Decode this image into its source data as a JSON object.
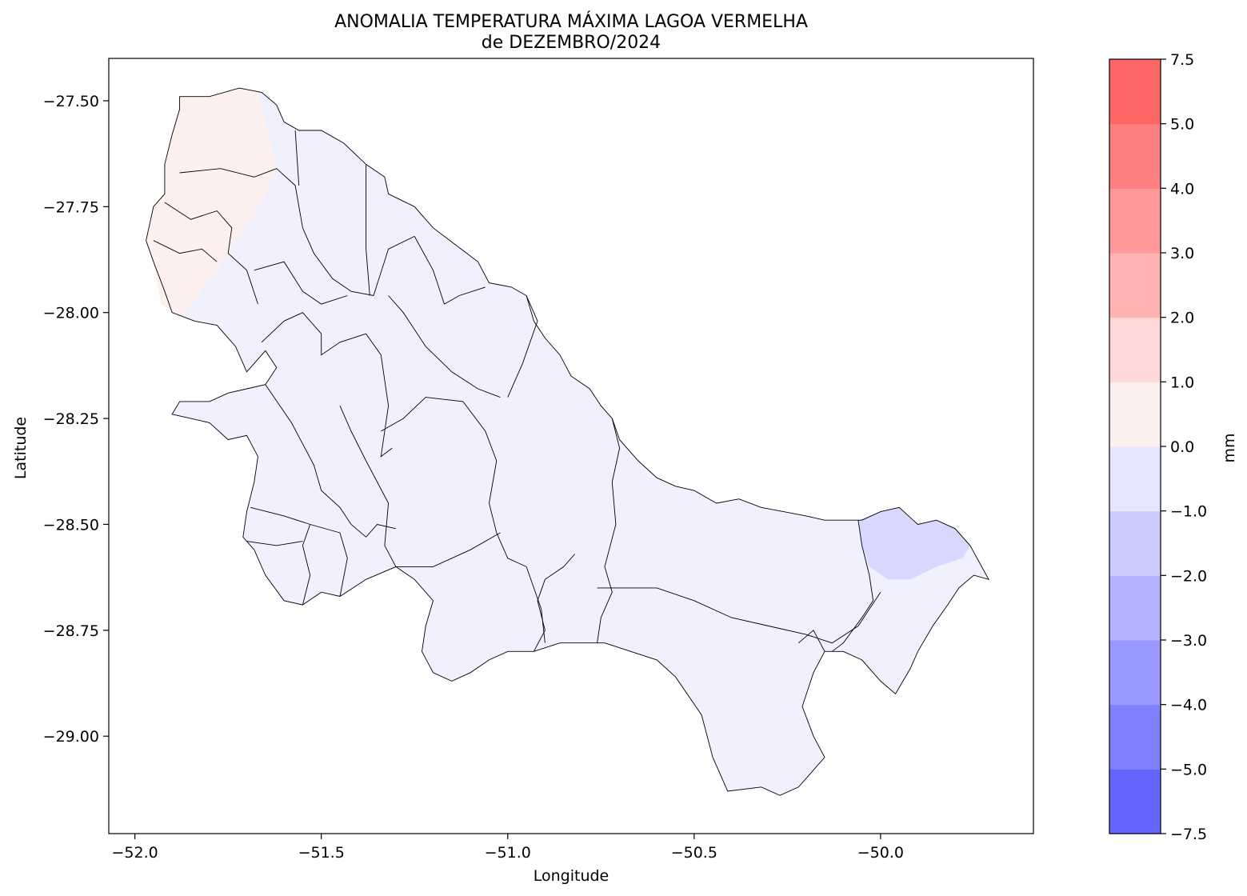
{
  "title_line1": "ANOMALIA TEMPERATURA MÁXIMA LAGOA VERMELHA",
  "title_line2": "de DEZEMBRO/2024",
  "chart_data": {
    "type": "heatmap",
    "subtype": "choropleth-map",
    "xlabel": "Longitude",
    "ylabel": "Latitude",
    "xlim": [
      -52.07,
      -49.59
    ],
    "ylim": [
      -29.23,
      -27.4
    ],
    "xticks": [
      -52.0,
      -51.5,
      -51.0,
      -50.5,
      -50.0
    ],
    "xtick_labels": [
      "−52.0",
      "−51.5",
      "−51.0",
      "−50.5",
      "−50.0"
    ],
    "yticks": [
      -27.5,
      -27.75,
      -28.0,
      -28.25,
      -28.5,
      -28.75,
      -29.0
    ],
    "ytick_labels": [
      "−27.50",
      "−27.75",
      "−28.00",
      "−28.25",
      "−28.50",
      "−28.75",
      "−29.00"
    ],
    "grid": false,
    "colorbar": {
      "label": "mm",
      "levels": [
        -7.5,
        -5.0,
        -4.0,
        -3.0,
        -2.0,
        -1.0,
        0.0,
        1.0,
        2.0,
        3.0,
        4.0,
        5.0,
        7.5
      ],
      "tick_labels": [
        "−7.5",
        "−5.0",
        "−4.0",
        "−3.0",
        "−2.0",
        "−1.0",
        "0.0",
        "1.0",
        "2.0",
        "3.0",
        "4.0",
        "5.0",
        "7.5"
      ],
      "colors": [
        "#6666ff",
        "#8080ff",
        "#9999ff",
        "#b3b3ff",
        "#ccccff",
        "#e6e6ff",
        "#fff0f0",
        "#ffd9d9",
        "#ffb3b3",
        "#ff9999",
        "#ff8080",
        "#ff6666"
      ]
    },
    "region_fills": {
      "northwest_positive": "#fff0f0",
      "main_negative": "#f0f0ff",
      "east_patch": "#d8d8ff"
    },
    "region_outline": [
      [
        -51.88,
        -27.49
      ],
      [
        -51.8,
        -27.49
      ],
      [
        -51.72,
        -27.47
      ],
      [
        -51.66,
        -27.48
      ],
      [
        -51.62,
        -27.51
      ],
      [
        -51.6,
        -27.55
      ],
      [
        -51.56,
        -27.57
      ],
      [
        -51.5,
        -27.57
      ],
      [
        -51.44,
        -27.6
      ],
      [
        -51.38,
        -27.65
      ],
      [
        -51.33,
        -27.68
      ],
      [
        -51.32,
        -27.72
      ],
      [
        -51.25,
        -27.75
      ],
      [
        -51.2,
        -27.8
      ],
      [
        -51.14,
        -27.84
      ],
      [
        -51.08,
        -27.88
      ],
      [
        -51.05,
        -27.93
      ],
      [
        -50.99,
        -27.94
      ],
      [
        -50.95,
        -27.96
      ],
      [
        -50.93,
        -28.02
      ],
      [
        -50.9,
        -28.06
      ],
      [
        -50.86,
        -28.1
      ],
      [
        -50.83,
        -28.15
      ],
      [
        -50.78,
        -28.18
      ],
      [
        -50.75,
        -28.22
      ],
      [
        -50.72,
        -28.25
      ],
      [
        -50.7,
        -28.3
      ],
      [
        -50.65,
        -28.35
      ],
      [
        -50.6,
        -28.39
      ],
      [
        -50.55,
        -28.41
      ],
      [
        -50.5,
        -28.42
      ],
      [
        -50.44,
        -28.45
      ],
      [
        -50.38,
        -28.44
      ],
      [
        -50.32,
        -28.46
      ],
      [
        -50.26,
        -28.47
      ],
      [
        -50.2,
        -28.48
      ],
      [
        -50.15,
        -28.49
      ],
      [
        -50.05,
        -28.49
      ],
      [
        -50.0,
        -28.47
      ],
      [
        -49.95,
        -28.46
      ],
      [
        -49.9,
        -28.5
      ],
      [
        -49.85,
        -28.49
      ],
      [
        -49.8,
        -28.51
      ],
      [
        -49.76,
        -28.55
      ],
      [
        -49.71,
        -28.63
      ],
      [
        -49.75,
        -28.62
      ],
      [
        -49.79,
        -28.65
      ],
      [
        -49.82,
        -28.69
      ],
      [
        -49.86,
        -28.74
      ],
      [
        -49.9,
        -28.8
      ],
      [
        -49.92,
        -28.84
      ],
      [
        -49.96,
        -28.9
      ],
      [
        -50.0,
        -28.87
      ],
      [
        -50.05,
        -28.82
      ],
      [
        -50.1,
        -28.8
      ],
      [
        -50.15,
        -28.8
      ],
      [
        -50.18,
        -28.85
      ],
      [
        -50.21,
        -28.93
      ],
      [
        -50.18,
        -29.0
      ],
      [
        -50.15,
        -29.05
      ],
      [
        -50.19,
        -29.09
      ],
      [
        -50.22,
        -29.12
      ],
      [
        -50.27,
        -29.14
      ],
      [
        -50.32,
        -29.12
      ],
      [
        -50.41,
        -29.13
      ],
      [
        -50.45,
        -29.05
      ],
      [
        -50.48,
        -28.95
      ],
      [
        -50.55,
        -28.86
      ],
      [
        -50.6,
        -28.82
      ],
      [
        -50.67,
        -28.8
      ],
      [
        -50.74,
        -28.78
      ],
      [
        -50.8,
        -28.78
      ],
      [
        -50.86,
        -28.78
      ],
      [
        -50.93,
        -28.8
      ],
      [
        -51.0,
        -28.8
      ],
      [
        -51.05,
        -28.82
      ],
      [
        -51.1,
        -28.85
      ],
      [
        -51.15,
        -28.87
      ],
      [
        -51.2,
        -28.85
      ],
      [
        -51.23,
        -28.8
      ],
      [
        -51.22,
        -28.74
      ],
      [
        -51.2,
        -28.68
      ],
      [
        -51.25,
        -28.63
      ],
      [
        -51.3,
        -28.6
      ],
      [
        -51.38,
        -28.63
      ],
      [
        -51.45,
        -28.67
      ],
      [
        -51.5,
        -28.66
      ],
      [
        -51.55,
        -28.69
      ],
      [
        -51.6,
        -28.68
      ],
      [
        -51.65,
        -28.62
      ],
      [
        -51.68,
        -28.56
      ],
      [
        -51.71,
        -28.53
      ],
      [
        -51.7,
        -28.47
      ],
      [
        -51.68,
        -28.4
      ],
      [
        -51.67,
        -28.34
      ],
      [
        -51.7,
        -28.29
      ],
      [
        -51.75,
        -28.3
      ],
      [
        -51.8,
        -28.26
      ],
      [
        -51.85,
        -28.25
      ],
      [
        -51.9,
        -28.24
      ],
      [
        -51.88,
        -28.21
      ],
      [
        -51.8,
        -28.21
      ],
      [
        -51.75,
        -28.19
      ],
      [
        -51.7,
        -28.18
      ],
      [
        -51.65,
        -28.17
      ],
      [
        -51.62,
        -28.13
      ],
      [
        -51.65,
        -28.09
      ],
      [
        -51.7,
        -28.14
      ],
      [
        -51.73,
        -28.08
      ],
      [
        -51.78,
        -28.03
      ],
      [
        -51.84,
        -28.02
      ],
      [
        -51.9,
        -28.0
      ],
      [
        -51.92,
        -27.95
      ],
      [
        -51.95,
        -27.88
      ],
      [
        -51.97,
        -27.83
      ],
      [
        -51.95,
        -27.75
      ],
      [
        -51.92,
        -27.72
      ],
      [
        -51.92,
        -27.65
      ],
      [
        -51.9,
        -27.58
      ],
      [
        -51.88,
        -27.52
      ]
    ],
    "northwest_patch": [
      [
        -51.88,
        -27.49
      ],
      [
        -51.8,
        -27.49
      ],
      [
        -51.72,
        -27.47
      ],
      [
        -51.67,
        -27.48
      ],
      [
        -51.64,
        -27.58
      ],
      [
        -51.62,
        -27.66
      ],
      [
        -51.66,
        -27.74
      ],
      [
        -51.72,
        -27.82
      ],
      [
        -51.78,
        -27.9
      ],
      [
        -51.84,
        -27.97
      ],
      [
        -51.88,
        -28.01
      ],
      [
        -51.93,
        -27.98
      ],
      [
        -51.95,
        -27.88
      ],
      [
        -51.97,
        -27.83
      ],
      [
        -51.95,
        -27.75
      ],
      [
        -51.92,
        -27.72
      ],
      [
        -51.92,
        -27.65
      ],
      [
        -51.9,
        -27.58
      ],
      [
        -51.88,
        -27.52
      ]
    ],
    "east_patch": [
      [
        -50.06,
        -28.49
      ],
      [
        -50.0,
        -28.47
      ],
      [
        -49.95,
        -28.46
      ],
      [
        -49.9,
        -28.5
      ],
      [
        -49.85,
        -28.49
      ],
      [
        -49.8,
        -28.51
      ],
      [
        -49.76,
        -28.55
      ],
      [
        -49.78,
        -28.58
      ],
      [
        -49.85,
        -28.6
      ],
      [
        -49.92,
        -28.63
      ],
      [
        -49.98,
        -28.63
      ],
      [
        -50.03,
        -28.6
      ],
      [
        -50.05,
        -28.55
      ]
    ],
    "internal_boundaries": [
      [
        [
          -51.88,
          -27.67
        ],
        [
          -51.77,
          -27.66
        ],
        [
          -51.68,
          -27.68
        ],
        [
          -51.62,
          -27.66
        ]
      ],
      [
        [
          -51.92,
          -27.74
        ],
        [
          -51.85,
          -27.78
        ],
        [
          -51.78,
          -27.76
        ],
        [
          -51.74,
          -27.8
        ],
        [
          -51.75,
          -27.86
        ],
        [
          -51.7,
          -27.9
        ],
        [
          -51.67,
          -27.98
        ]
      ],
      [
        [
          -51.95,
          -27.83
        ],
        [
          -51.88,
          -27.86
        ],
        [
          -51.82,
          -27.85
        ],
        [
          -51.78,
          -27.88
        ]
      ],
      [
        [
          -51.62,
          -27.66
        ],
        [
          -51.57,
          -27.7
        ],
        [
          -51.55,
          -27.8
        ],
        [
          -51.52,
          -27.86
        ],
        [
          -51.47,
          -27.92
        ],
        [
          -51.42,
          -27.95
        ],
        [
          -51.36,
          -27.96
        ],
        [
          -51.32,
          -27.85
        ],
        [
          -51.25,
          -27.82
        ]
      ],
      [
        [
          -51.57,
          -27.57
        ],
        [
          -51.56,
          -27.7
        ]
      ],
      [
        [
          -51.38,
          -27.65
        ],
        [
          -51.38,
          -27.85
        ],
        [
          -51.37,
          -27.96
        ]
      ],
      [
        [
          -51.68,
          -27.9
        ],
        [
          -51.6,
          -27.88
        ],
        [
          -51.55,
          -27.95
        ],
        [
          -51.5,
          -27.98
        ],
        [
          -51.43,
          -27.96
        ]
      ],
      [
        [
          -51.66,
          -28.07
        ],
        [
          -51.6,
          -28.02
        ],
        [
          -51.55,
          -28.0
        ],
        [
          -51.5,
          -28.05
        ],
        [
          -51.5,
          -28.1
        ],
        [
          -51.45,
          -28.07
        ],
        [
          -51.38,
          -28.05
        ]
      ],
      [
        [
          -51.38,
          -28.05
        ],
        [
          -51.34,
          -28.1
        ],
        [
          -51.32,
          -28.22
        ],
        [
          -51.34,
          -28.34
        ],
        [
          -51.31,
          -28.32
        ]
      ],
      [
        [
          -51.25,
          -27.82
        ],
        [
          -51.2,
          -27.9
        ],
        [
          -51.17,
          -27.98
        ],
        [
          -51.13,
          -27.96
        ],
        [
          -51.06,
          -27.94
        ]
      ],
      [
        [
          -51.32,
          -27.96
        ],
        [
          -51.28,
          -28.0
        ],
        [
          -51.22,
          -28.08
        ],
        [
          -51.15,
          -28.14
        ],
        [
          -51.08,
          -28.18
        ],
        [
          -51.02,
          -28.2
        ]
      ],
      [
        [
          -51.0,
          -28.2
        ],
        [
          -50.96,
          -28.12
        ],
        [
          -50.92,
          -28.02
        ],
        [
          -50.95,
          -27.96
        ]
      ],
      [
        [
          -51.34,
          -28.28
        ],
        [
          -51.28,
          -28.25
        ],
        [
          -51.22,
          -28.2
        ],
        [
          -51.12,
          -28.21
        ],
        [
          -51.06,
          -28.28
        ],
        [
          -51.03,
          -28.35
        ],
        [
          -51.05,
          -28.45
        ],
        [
          -51.03,
          -28.52
        ],
        [
          -51.0,
          -28.58
        ],
        [
          -50.95,
          -28.6
        ],
        [
          -50.91,
          -28.7
        ],
        [
          -50.9,
          -28.78
        ]
      ],
      [
        [
          -51.02,
          -28.52
        ],
        [
          -51.1,
          -28.56
        ],
        [
          -51.2,
          -28.6
        ],
        [
          -51.3,
          -28.6
        ]
      ],
      [
        [
          -51.45,
          -28.22
        ],
        [
          -51.42,
          -28.28
        ],
        [
          -51.38,
          -28.35
        ],
        [
          -51.32,
          -28.45
        ],
        [
          -51.33,
          -28.55
        ],
        [
          -51.3,
          -28.6
        ]
      ],
      [
        [
          -51.65,
          -28.17
        ],
        [
          -51.58,
          -28.26
        ],
        [
          -51.52,
          -28.36
        ],
        [
          -51.5,
          -28.42
        ],
        [
          -51.45,
          -28.46
        ],
        [
          -51.42,
          -28.5
        ],
        [
          -51.38,
          -28.53
        ],
        [
          -51.35,
          -28.5
        ],
        [
          -51.3,
          -28.51
        ]
      ],
      [
        [
          -51.69,
          -28.46
        ],
        [
          -51.6,
          -28.48
        ],
        [
          -51.53,
          -28.5
        ],
        [
          -51.45,
          -28.52
        ]
      ],
      [
        [
          -51.7,
          -28.54
        ],
        [
          -51.62,
          -28.55
        ],
        [
          -51.55,
          -28.54
        ]
      ],
      [
        [
          -51.53,
          -28.5
        ],
        [
          -51.55,
          -28.55
        ],
        [
          -51.53,
          -28.62
        ],
        [
          -51.55,
          -28.69
        ]
      ],
      [
        [
          -51.45,
          -28.52
        ],
        [
          -51.43,
          -28.58
        ],
        [
          -51.45,
          -28.67
        ]
      ],
      [
        [
          -50.72,
          -28.25
        ],
        [
          -50.7,
          -28.32
        ],
        [
          -50.72,
          -28.4
        ],
        [
          -50.71,
          -28.5
        ],
        [
          -50.74,
          -28.6
        ],
        [
          -50.72,
          -28.66
        ],
        [
          -50.75,
          -28.72
        ],
        [
          -50.76,
          -28.78
        ]
      ],
      [
        [
          -50.82,
          -28.57
        ],
        [
          -50.85,
          -28.6
        ],
        [
          -50.9,
          -28.63
        ],
        [
          -50.92,
          -28.68
        ],
        [
          -50.9,
          -28.75
        ],
        [
          -50.93,
          -28.8
        ]
      ],
      [
        [
          -50.76,
          -28.65
        ],
        [
          -50.6,
          -28.65
        ],
        [
          -50.5,
          -28.68
        ],
        [
          -50.4,
          -28.72
        ],
        [
          -50.3,
          -28.74
        ],
        [
          -50.2,
          -28.76
        ],
        [
          -50.13,
          -28.78
        ],
        [
          -50.06,
          -28.74
        ],
        [
          -50.0,
          -28.66
        ]
      ],
      [
        [
          -50.06,
          -28.49
        ],
        [
          -50.05,
          -28.55
        ],
        [
          -50.03,
          -28.62
        ],
        [
          -50.02,
          -28.68
        ],
        [
          -50.05,
          -28.72
        ],
        [
          -50.1,
          -28.78
        ],
        [
          -50.13,
          -28.8
        ]
      ],
      [
        [
          -50.15,
          -28.8
        ],
        [
          -50.18,
          -28.75
        ],
        [
          -50.22,
          -28.78
        ]
      ]
    ]
  }
}
